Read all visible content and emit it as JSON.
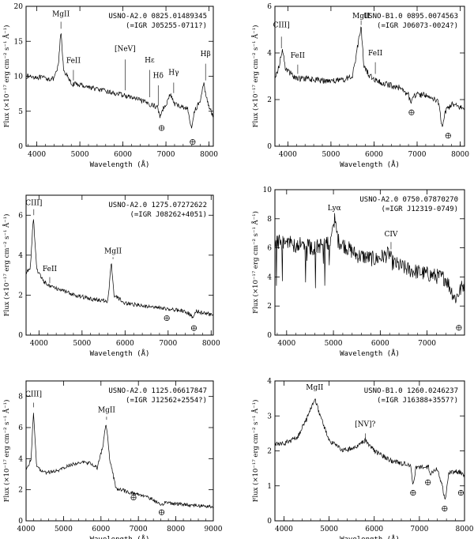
{
  "chart_data": [
    {
      "type": "line",
      "title_lines": [
        "USNO-A2.0 0825.01489345",
        "(=IGR J05255-0711?)"
      ],
      "xlabel": "Wavelength (Å)",
      "ylabel": "Flux (×10⁻¹⁷ erg cm⁻² s⁻¹ Å⁻¹)",
      "xlim": [
        3750,
        8100
      ],
      "ylim": [
        0,
        20
      ],
      "xticks": [
        4000,
        5000,
        6000,
        7000,
        8000
      ],
      "yticks": [
        0,
        5,
        10,
        15,
        20
      ],
      "continuum": [
        [
          3750,
          10.0
        ],
        [
          4000,
          9.9
        ],
        [
          4200,
          9.7
        ],
        [
          4400,
          9.6
        ],
        [
          4500,
          11.5
        ],
        [
          4560,
          16.5
        ],
        [
          4620,
          11.0
        ],
        [
          4800,
          8.9
        ],
        [
          5000,
          8.8
        ],
        [
          5500,
          8.0
        ],
        [
          6000,
          7.3
        ],
        [
          6300,
          6.8
        ],
        [
          6500,
          6.3
        ],
        [
          6800,
          5.6
        ],
        [
          6860,
          4.3
        ],
        [
          6920,
          5.2
        ],
        [
          7050,
          6.6
        ],
        [
          7100,
          7.5
        ],
        [
          7200,
          6.0
        ],
        [
          7500,
          5.4
        ],
        [
          7600,
          2.3
        ],
        [
          7650,
          4.9
        ],
        [
          7800,
          6.5
        ],
        [
          7880,
          9.0
        ],
        [
          7920,
          7.5
        ],
        [
          8000,
          5.8
        ],
        [
          8100,
          4.0
        ]
      ],
      "noise": 0.35,
      "lines": [
        {
          "label": "MgII",
          "x": 4560,
          "y": 18.6,
          "tick": [
            16.8,
            17.8
          ]
        },
        {
          "label": "FeII",
          "x": 4850,
          "y": 11.9,
          "tick": [
            9.4,
            10.9
          ]
        },
        {
          "label": "[NeV]",
          "x": 6050,
          "y": 13.6,
          "tick": [
            8.0,
            12.4
          ]
        },
        {
          "label": "Hε",
          "x": 6620,
          "y": 12.0,
          "tick": [
            7.0,
            10.9
          ]
        },
        {
          "label": "Hδ",
          "x": 6820,
          "y": 9.8,
          "tick": [
            5.8,
            8.7
          ]
        },
        {
          "label": "Hγ",
          "x": 7180,
          "y": 10.2,
          "tick": [
            7.6,
            9.1
          ]
        },
        {
          "label": "Hβ",
          "x": 7920,
          "y": 12.9,
          "tick": [
            9.4,
            11.8
          ]
        }
      ],
      "telluric": [
        {
          "x": 6900,
          "y": 2.6
        },
        {
          "x": 7620,
          "y": 0.6
        }
      ]
    },
    {
      "type": "line",
      "title_lines": [
        "USNO-B1.0 0895.0074563",
        "(=IGR J06073-0024?)"
      ],
      "xlabel": "Wavelength (Å)",
      "ylabel": "Flux (×10⁻¹⁷ erg cm⁻² s⁻¹ Å⁻¹)",
      "xlim": [
        3700,
        8100
      ],
      "ylim": [
        0,
        6
      ],
      "xticks": [
        4000,
        5000,
        6000,
        7000,
        8000
      ],
      "yticks": [
        0,
        2,
        4,
        6
      ],
      "continuum": [
        [
          3700,
          3.0
        ],
        [
          3800,
          3.4
        ],
        [
          3870,
          4.2
        ],
        [
          3950,
          3.3
        ],
        [
          4200,
          2.9
        ],
        [
          4400,
          2.9
        ],
        [
          4800,
          2.8
        ],
        [
          5200,
          2.8
        ],
        [
          5500,
          3.0
        ],
        [
          5650,
          4.6
        ],
        [
          5700,
          5.1
        ],
        [
          5760,
          3.5
        ],
        [
          5900,
          3.0
        ],
        [
          6200,
          2.7
        ],
        [
          6600,
          2.5
        ],
        [
          6800,
          2.2
        ],
        [
          6850,
          1.8
        ],
        [
          6920,
          2.2
        ],
        [
          7200,
          2.2
        ],
        [
          7500,
          1.9
        ],
        [
          7580,
          0.8
        ],
        [
          7650,
          1.5
        ],
        [
          7800,
          1.8
        ],
        [
          8100,
          1.6
        ]
      ],
      "noise": 0.13,
      "lines": [
        {
          "label": "CIII]",
          "x": 3850,
          "y": 5.1,
          "tick": [
            4.2,
            4.7
          ]
        },
        {
          "label": "FeII",
          "x": 4230,
          "y": 3.8,
          "tick": [
            3.1,
            3.5
          ]
        },
        {
          "label": "MgII",
          "x": 5700,
          "y": 5.5,
          "tick": [
            5.2,
            5.4
          ]
        },
        {
          "label": "FeII",
          "x": 6030,
          "y": 3.9,
          "tick": [
            3.1,
            3.6
          ]
        }
      ],
      "telluric": [
        {
          "x": 6870,
          "y": 1.45
        },
        {
          "x": 7720,
          "y": 0.45
        }
      ]
    },
    {
      "type": "line",
      "title_lines": [
        "USNO-A2.0 1275.07272622",
        "(=IGR J08262+4051)"
      ],
      "xlabel": "Wavelength (Å)",
      "ylabel": "Flux (×10⁻¹⁷ erg cm⁻² s⁻¹ Å⁻¹)",
      "xlim": [
        3700,
        8050
      ],
      "ylim": [
        0,
        7
      ],
      "xticks": [
        4000,
        5000,
        6000,
        7000,
        8000
      ],
      "yticks": [
        0,
        2,
        4,
        6
      ],
      "continuum": [
        [
          3700,
          3.1
        ],
        [
          3800,
          3.4
        ],
        [
          3870,
          5.9
        ],
        [
          3950,
          3.3
        ],
        [
          4100,
          2.7
        ],
        [
          4300,
          2.4
        ],
        [
          4700,
          2.1
        ],
        [
          5200,
          1.8
        ],
        [
          5600,
          1.7
        ],
        [
          5680,
          3.7
        ],
        [
          5740,
          2.0
        ],
        [
          6000,
          1.6
        ],
        [
          6600,
          1.4
        ],
        [
          7000,
          1.3
        ],
        [
          7400,
          1.2
        ],
        [
          7580,
          0.9
        ],
        [
          7650,
          1.2
        ],
        [
          8050,
          1.0
        ]
      ],
      "noise": 0.1,
      "lines": [
        {
          "label": "CIII]",
          "x": 3880,
          "y": 6.5,
          "tick": [
            6.0,
            6.3
          ]
        },
        {
          "label": "FeII",
          "x": 4250,
          "y": 3.2,
          "tick": [
            2.6,
            2.9
          ]
        },
        {
          "label": "MgII",
          "x": 5720,
          "y": 4.1,
          "tick": [
            3.8,
            3.9
          ]
        }
      ],
      "telluric": [
        {
          "x": 6970,
          "y": 0.85
        },
        {
          "x": 7600,
          "y": 0.35
        }
      ]
    },
    {
      "type": "line",
      "title_lines": [
        "USNO-A2.0 0750.07870270",
        "(=IGR J12319-0749)"
      ],
      "xlabel": "Wavelength (Å)",
      "ylabel": "Flux (×10⁻¹⁷ erg cm⁻² s⁻¹ Å⁻¹)",
      "xlim": [
        3750,
        7800
      ],
      "ylim": [
        0,
        10
      ],
      "xticks": [
        4000,
        5000,
        6000,
        7000
      ],
      "yticks": [
        0,
        2,
        4,
        6,
        8,
        10
      ],
      "continuum": [
        [
          3750,
          6.5
        ],
        [
          4000,
          6.3
        ],
        [
          4300,
          6.2
        ],
        [
          4600,
          6.0
        ],
        [
          4950,
          6.5
        ],
        [
          5020,
          8.0
        ],
        [
          5100,
          6.5
        ],
        [
          5500,
          5.5
        ],
        [
          5900,
          5.2
        ],
        [
          6200,
          5.6
        ],
        [
          6250,
          5.0
        ],
        [
          6600,
          4.5
        ],
        [
          7000,
          4.2
        ],
        [
          7400,
          3.9
        ],
        [
          7600,
          2.5
        ],
        [
          7800,
          3.6
        ]
      ],
      "noise": 0.55,
      "lines": [
        {
          "label": "Lyα",
          "x": 5020,
          "y": 8.6,
          "tick": [
            7.7,
            8.1
          ]
        },
        {
          "label": "CIV",
          "x": 6230,
          "y": 6.8,
          "tick": [
            5.9,
            6.4
          ]
        }
      ],
      "telluric": [
        {
          "x": 7680,
          "y": 0.5
        }
      ]
    },
    {
      "type": "line",
      "title_lines": [
        "USNO-A2.0 1125.06617847",
        "(=IGR J12562+2554?)"
      ],
      "xlabel": "Wavelength (Å)",
      "ylabel": "Flux (×10⁻¹⁷ erg cm⁻² s⁻¹ Å⁻¹)",
      "xlim": [
        4000,
        9000
      ],
      "ylim": [
        0,
        9
      ],
      "xticks": [
        4000,
        5000,
        6000,
        7000,
        8000,
        9000
      ],
      "yticks": [
        0,
        2,
        4,
        6,
        8
      ],
      "continuum": [
        [
          4000,
          3.3
        ],
        [
          4130,
          3.9
        ],
        [
          4200,
          7.0
        ],
        [
          4280,
          3.5
        ],
        [
          4500,
          3.1
        ],
        [
          4800,
          3.2
        ],
        [
          5200,
          3.6
        ],
        [
          5500,
          3.8
        ],
        [
          5700,
          3.7
        ],
        [
          5900,
          3.4
        ],
        [
          6050,
          4.8
        ],
        [
          6140,
          6.3
        ],
        [
          6230,
          4.0
        ],
        [
          6400,
          2.1
        ],
        [
          6800,
          1.8
        ],
        [
          7200,
          1.6
        ],
        [
          7500,
          1.2
        ],
        [
          7600,
          0.9
        ],
        [
          7700,
          1.2
        ],
        [
          8000,
          1.1
        ],
        [
          8500,
          1.0
        ],
        [
          9000,
          0.9
        ]
      ],
      "noise": 0.12,
      "lines": [
        {
          "label": "CIII]",
          "x": 4200,
          "y": 8.0,
          "tick": [
            7.3,
            7.6
          ]
        },
        {
          "label": "MgII",
          "x": 6150,
          "y": 7.0,
          "tick": [
            6.5,
            6.7
          ]
        }
      ],
      "telluric": [
        {
          "x": 6870,
          "y": 1.5
        },
        {
          "x": 7620,
          "y": 0.55
        }
      ]
    },
    {
      "type": "line",
      "title_lines": [
        "USNO-B1.0 1260.0246237",
        "(=IGR J16388+3557?)"
      ],
      "xlabel": "Wavelength (Å)",
      "ylabel": "Flux (×10⁻¹⁷ erg cm⁻² s⁻¹ Å⁻¹)",
      "xlim": [
        3800,
        8000
      ],
      "ylim": [
        0,
        4
      ],
      "xticks": [
        4000,
        5000,
        6000,
        7000,
        8000
      ],
      "yticks": [
        0,
        1,
        2,
        3,
        4
      ],
      "continuum": [
        [
          3800,
          2.2
        ],
        [
          4000,
          2.2
        ],
        [
          4300,
          2.4
        ],
        [
          4500,
          2.9
        ],
        [
          4680,
          3.5
        ],
        [
          4800,
          3.0
        ],
        [
          5000,
          2.3
        ],
        [
          5300,
          2.0
        ],
        [
          5600,
          2.1
        ],
        [
          5800,
          2.3
        ],
        [
          6000,
          2.0
        ],
        [
          6400,
          1.7
        ],
        [
          6800,
          1.6
        ],
        [
          6860,
          1.0
        ],
        [
          6920,
          1.5
        ],
        [
          7200,
          1.55
        ],
        [
          7250,
          1.35
        ],
        [
          7400,
          1.5
        ],
        [
          7580,
          0.6
        ],
        [
          7650,
          1.4
        ],
        [
          7900,
          1.4
        ],
        [
          8000,
          1.25
        ]
      ],
      "noise": 0.07,
      "lines": [
        {
          "label": "MgII",
          "x": 4680,
          "y": 3.75,
          "tick": null
        },
        {
          "label": "[NV]?",
          "x": 5800,
          "y": 2.7,
          "tick": [
            2.35,
            2.5
          ]
        }
      ],
      "telluric": [
        {
          "x": 6860,
          "y": 0.8
        },
        {
          "x": 7190,
          "y": 1.1
        },
        {
          "x": 7560,
          "y": 0.35
        },
        {
          "x": 7920,
          "y": 0.8
        }
      ]
    }
  ]
}
